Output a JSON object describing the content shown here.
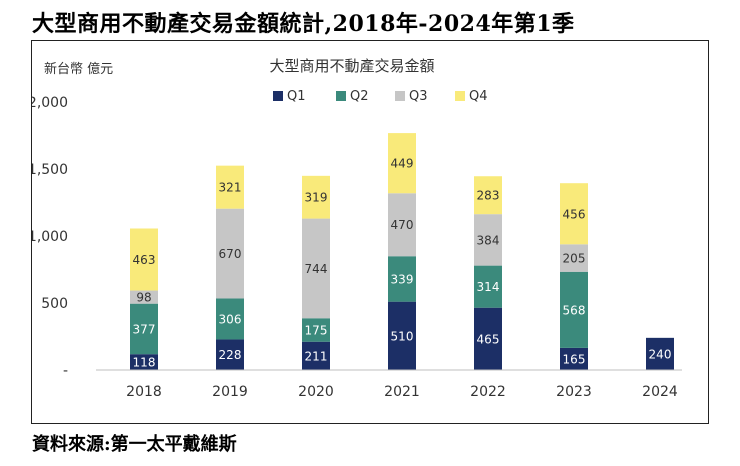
{
  "page": {
    "title": "大型商用不動產交易金額統計,2018年-2024年第1季",
    "source": "資料來源:第一太平戴維斯"
  },
  "chart_data": {
    "type": "bar",
    "stacked": true,
    "title": "大型商用不動產交易金額",
    "ylabel": "新台幣 億元",
    "xlabel": "",
    "categories": [
      "2018",
      "2019",
      "2020",
      "2021",
      "2022",
      "2023",
      "2024"
    ],
    "ylim": [
      0,
      2000
    ],
    "yticks": [
      0,
      500,
      1000,
      1500,
      2000
    ],
    "ytick_labels": [
      "-",
      "500",
      "1,000",
      "1,500",
      "2,000"
    ],
    "legend_position": "top",
    "grid": false,
    "series": [
      {
        "name": "Q1",
        "color": "#1c2f66",
        "label_color": "#ffffff",
        "values": [
          118,
          228,
          211,
          510,
          465,
          165,
          240
        ]
      },
      {
        "name": "Q2",
        "color": "#3b8a7c",
        "label_color": "#ffffff",
        "values": [
          377,
          306,
          175,
          339,
          314,
          568,
          null
        ]
      },
      {
        "name": "Q3",
        "color": "#c6c6c6",
        "label_color": "#333333",
        "values": [
          98,
          670,
          744,
          470,
          384,
          205,
          null
        ]
      },
      {
        "name": "Q4",
        "color": "#f9ea7a",
        "label_color": "#333333",
        "values": [
          463,
          321,
          319,
          449,
          283,
          456,
          null
        ]
      }
    ]
  }
}
